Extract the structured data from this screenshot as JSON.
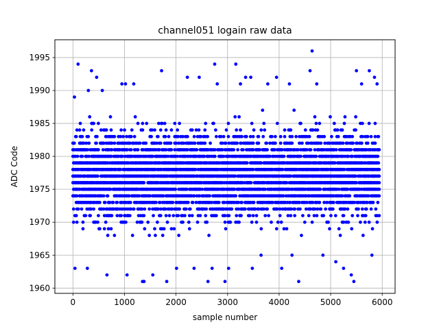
{
  "chart_data": {
    "type": "scatter",
    "title": "channel051 logain raw data",
    "xlabel": "sample number",
    "ylabel": "ADC Code",
    "xlim": [
      -350,
      6250
    ],
    "ylim": [
      1959.2,
      1997.7
    ],
    "xticks": [
      0,
      1000,
      2000,
      3000,
      4000,
      5000,
      6000
    ],
    "yticks": [
      1960,
      1965,
      1970,
      1975,
      1980,
      1985,
      1990,
      1995
    ],
    "grid": true,
    "marker_color": "#0000ff",
    "x_range": [
      0,
      5950
    ],
    "series": [
      {
        "name": "",
        "dense_band": {
          "x_start": 0,
          "x_end": 5950,
          "y_min": 1968,
          "y_max": 1986
        },
        "outliers": [
          [
            100,
            1994
          ],
          [
            30,
            1989
          ],
          [
            40,
            1963
          ],
          [
            300,
            1990
          ],
          [
            280,
            1963
          ],
          [
            360,
            1993
          ],
          [
            460,
            1992
          ],
          [
            570,
            1990
          ],
          [
            660,
            1962
          ],
          [
            950,
            1991
          ],
          [
            1020,
            1991
          ],
          [
            1050,
            1962
          ],
          [
            1180,
            1991
          ],
          [
            1350,
            1961
          ],
          [
            1380,
            1961
          ],
          [
            1550,
            1962
          ],
          [
            1720,
            1993
          ],
          [
            1820,
            1961
          ],
          [
            2010,
            1963
          ],
          [
            2220,
            1992
          ],
          [
            2350,
            1963
          ],
          [
            2450,
            1992
          ],
          [
            2620,
            1961
          ],
          [
            2700,
            1963
          ],
          [
            2750,
            1994
          ],
          [
            2800,
            1991
          ],
          [
            2950,
            1961
          ],
          [
            3020,
            1963
          ],
          [
            3160,
            1994
          ],
          [
            3250,
            1991
          ],
          [
            3350,
            1992
          ],
          [
            3450,
            1992
          ],
          [
            3480,
            1963
          ],
          [
            3650,
            1965
          ],
          [
            3780,
            1991
          ],
          [
            3950,
            1992
          ],
          [
            4050,
            1963
          ],
          [
            4200,
            1991
          ],
          [
            4250,
            1965
          ],
          [
            4380,
            1961
          ],
          [
            4600,
            1993
          ],
          [
            4640,
            1996
          ],
          [
            4730,
            1991
          ],
          [
            4850,
            1965
          ],
          [
            5100,
            1964
          ],
          [
            5250,
            1963
          ],
          [
            5400,
            1962
          ],
          [
            5450,
            1961
          ],
          [
            5500,
            1993
          ],
          [
            5600,
            1991
          ],
          [
            5750,
            1993
          ],
          [
            5800,
            1965
          ],
          [
            5850,
            1992
          ],
          [
            5900,
            1991
          ]
        ]
      }
    ]
  }
}
